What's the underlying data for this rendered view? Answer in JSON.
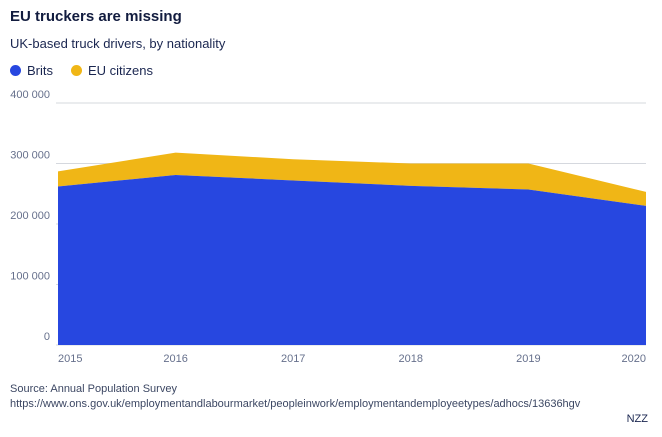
{
  "header": {
    "title": "EU truckers are missing",
    "subtitle": "UK-based truck drivers, by nationality"
  },
  "legend": [
    {
      "label": "Brits",
      "color": "#2747e0"
    },
    {
      "label": "EU citizens",
      "color": "#f0b616"
    }
  ],
  "chart_data": {
    "type": "area",
    "stacked": true,
    "title": "EU truckers are missing",
    "subtitle": "UK-based truck drivers, by nationality",
    "x": [
      2015,
      2016,
      2017,
      2018,
      2019,
      2020
    ],
    "series": [
      {
        "name": "Brits",
        "color": "#2747e0",
        "values": [
          262000,
          281000,
          272000,
          263000,
          257000,
          230000
        ]
      },
      {
        "name": "EU citizens",
        "color": "#f0b616",
        "values": [
          25000,
          37000,
          35000,
          37000,
          43000,
          23000
        ]
      }
    ],
    "totals": [
      287000,
      318000,
      307000,
      300000,
      300000,
      253000
    ],
    "ylim": [
      0,
      400000
    ],
    "yticks": [
      0,
      100000,
      200000,
      300000,
      400000
    ],
    "ytick_labels": [
      "0",
      "100 000",
      "200 000",
      "300 000",
      "400 000"
    ],
    "grid": "horizontal",
    "grid_color": "#d5d8de",
    "legend_position": "top"
  },
  "footer": {
    "source": "Source: Annual Population Survey",
    "url": "https://www.ons.gov.uk/employmentandlabourmarket/peopleinwork/employmentandemployeetypes/adhocs/13636hgv",
    "credit": "NZZ"
  }
}
